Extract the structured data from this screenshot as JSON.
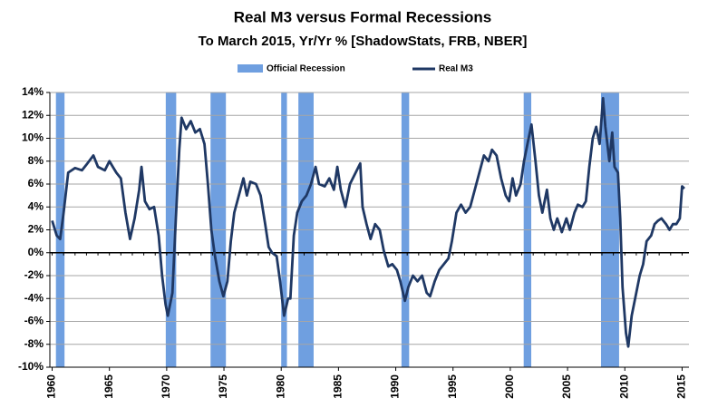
{
  "chart_data": {
    "type": "line",
    "title": "Real M3 versus Formal Recessions",
    "subtitle": "To March 2015, Yr/Yr % [ShadowStats, FRB, NBER]",
    "recessions": {
      "name": "Official Recession",
      "color": "#6f9fe0",
      "spans": [
        [
          1960.33,
          1961.08
        ],
        [
          1969.92,
          1970.83
        ],
        [
          1973.83,
          1975.17
        ],
        [
          1980.0,
          1980.5
        ],
        [
          1981.5,
          1982.83
        ],
        [
          1990.5,
          1991.17
        ],
        [
          2001.17,
          2001.83
        ],
        [
          2007.92,
          2009.5
        ]
      ]
    },
    "series": [
      {
        "name": "Real M3",
        "color": "#1f3864",
        "x": [
          1960.0,
          1960.4,
          1960.7,
          1961.0,
          1961.4,
          1962.0,
          1962.6,
          1963.0,
          1963.6,
          1964.0,
          1964.6,
          1965.0,
          1965.6,
          1966.0,
          1966.4,
          1966.8,
          1967.2,
          1967.6,
          1967.8,
          1968.1,
          1968.5,
          1968.9,
          1969.3,
          1969.6,
          1969.9,
          1970.1,
          1970.5,
          1970.8,
          1971.1,
          1971.3,
          1971.7,
          1972.1,
          1972.5,
          1972.9,
          1973.3,
          1973.6,
          1973.9,
          1974.2,
          1974.6,
          1974.95,
          1975.3,
          1975.6,
          1975.9,
          1976.3,
          1976.7,
          1977.0,
          1977.3,
          1977.8,
          1978.2,
          1978.6,
          1978.9,
          1979.2,
          1979.6,
          1979.9,
          1980.25,
          1980.6,
          1980.8,
          1981.1,
          1981.4,
          1981.8,
          1982.2,
          1982.6,
          1983.0,
          1983.3,
          1983.8,
          1984.2,
          1984.6,
          1984.9,
          1985.2,
          1985.6,
          1986.0,
          1986.5,
          1986.9,
          1987.1,
          1987.45,
          1987.8,
          1988.2,
          1988.6,
          1988.95,
          1989.35,
          1989.7,
          1990.1,
          1990.4,
          1990.8,
          1991.1,
          1991.5,
          1991.9,
          1992.3,
          1992.7,
          1993.0,
          1993.4,
          1993.8,
          1994.2,
          1994.6,
          1994.9,
          1995.3,
          1995.7,
          1996.1,
          1996.5,
          1996.9,
          1997.3,
          1997.7,
          1998.1,
          1998.4,
          1998.8,
          1999.2,
          1999.6,
          1999.9,
          2000.2,
          2000.5,
          2000.9,
          2001.2,
          2001.5,
          2001.85,
          2002.2,
          2002.5,
          2002.8,
          2003.2,
          2003.5,
          2003.8,
          2004.1,
          2004.5,
          2004.9,
          2005.2,
          2005.6,
          2005.9,
          2006.3,
          2006.6,
          2006.9,
          2007.2,
          2007.5,
          2007.8,
          2008.1,
          2008.3,
          2008.65,
          2008.9,
          2009.1,
          2009.4,
          2009.6,
          2009.8,
          2010.1,
          2010.3,
          2010.6,
          2010.9,
          2011.3,
          2011.6,
          2011.9,
          2012.3,
          2012.6,
          2012.9,
          2013.2,
          2013.6,
          2013.9,
          2014.2,
          2014.5,
          2014.8,
          2015.0,
          2015.2
        ],
        "values": [
          2.8,
          1.5,
          1.2,
          3.5,
          7.0,
          7.4,
          7.2,
          7.7,
          8.5,
          7.5,
          7.2,
          8.0,
          7.0,
          6.5,
          3.5,
          1.2,
          3.0,
          5.5,
          7.5,
          4.5,
          3.8,
          4.0,
          1.5,
          -2.0,
          -4.5,
          -5.5,
          -3.5,
          3.0,
          9.0,
          11.8,
          10.8,
          11.5,
          10.5,
          10.8,
          9.5,
          6.0,
          2.0,
          -0.2,
          -2.5,
          -3.8,
          -2.5,
          1.0,
          3.5,
          5.0,
          6.5,
          5.0,
          6.2,
          6.0,
          5.0,
          2.5,
          0.5,
          0.0,
          -0.3,
          -2.5,
          -5.5,
          -4.0,
          -4.0,
          1.5,
          3.5,
          4.5,
          5.0,
          6.0,
          7.5,
          6.0,
          5.8,
          6.5,
          5.5,
          7.5,
          5.5,
          4.0,
          6.0,
          7.0,
          7.8,
          4.0,
          2.5,
          1.2,
          2.5,
          2.0,
          0.2,
          -1.2,
          -1.0,
          -1.5,
          -2.5,
          -4.2,
          -3.0,
          -2.0,
          -2.5,
          -2.0,
          -3.5,
          -3.8,
          -2.5,
          -1.5,
          -1.0,
          -0.5,
          1.0,
          3.5,
          4.2,
          3.5,
          4.0,
          5.5,
          7.0,
          8.5,
          8.0,
          9.0,
          8.5,
          6.5,
          5.0,
          4.5,
          6.5,
          5.0,
          6.0,
          8.0,
          9.5,
          11.2,
          8.0,
          5.0,
          3.5,
          5.5,
          3.0,
          2.0,
          3.0,
          1.8,
          3.0,
          2.0,
          3.5,
          4.2,
          4.0,
          4.5,
          7.5,
          10.0,
          11.0,
          9.5,
          13.5,
          11.0,
          8.0,
          10.5,
          7.5,
          7.0,
          3.0,
          -3.0,
          -7.0,
          -8.2,
          -5.5,
          -4.0,
          -2.0,
          -1.0,
          1.0,
          1.5,
          2.5,
          2.8,
          3.0,
          2.5,
          2.0,
          2.5,
          2.5,
          3.0,
          5.8,
          5.6
        ]
      }
    ],
    "xlim": [
      1959.8,
      2015.6
    ],
    "xticks": [
      1960,
      1965,
      1970,
      1975,
      1980,
      1985,
      1990,
      1995,
      2000,
      2005,
      2010,
      2015
    ],
    "ylim": [
      -10,
      14
    ],
    "yticks": [
      {
        "value": -10,
        "label": "-10%"
      },
      {
        "value": -8,
        "label": "-8%"
      },
      {
        "value": -6,
        "label": "-6%"
      },
      {
        "value": -4,
        "label": "-4%"
      },
      {
        "value": -2,
        "label": "-2%"
      },
      {
        "value": 0,
        "label": "0%"
      },
      {
        "value": 2,
        "label": "2%"
      },
      {
        "value": 4,
        "label": "4%"
      },
      {
        "value": 6,
        "label": "6%"
      },
      {
        "value": 8,
        "label": "8%"
      },
      {
        "value": 10,
        "label": "10%"
      },
      {
        "value": 12,
        "label": "12%"
      },
      {
        "value": 14,
        "label": "14%"
      }
    ],
    "grid": true
  }
}
